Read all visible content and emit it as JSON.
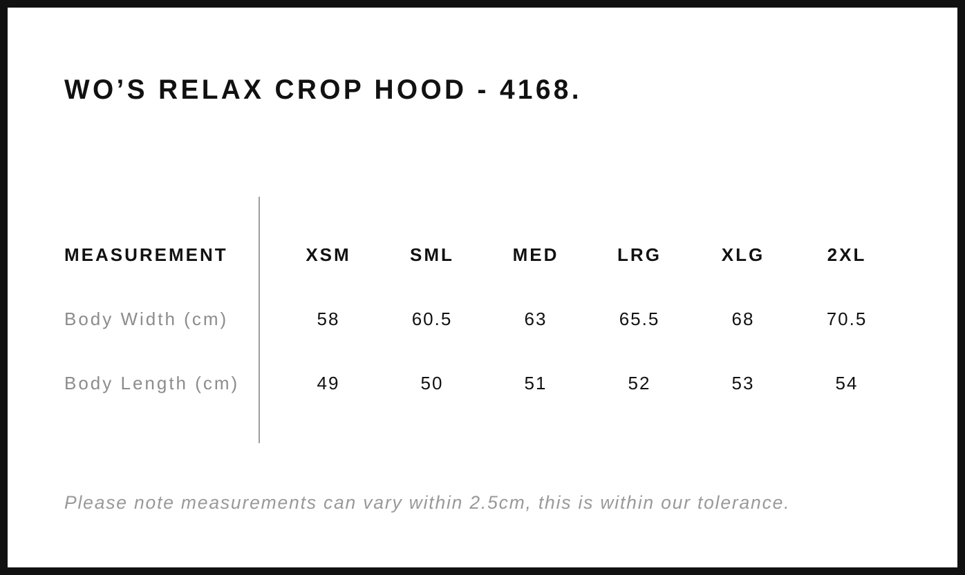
{
  "chart_data": {
    "type": "table",
    "title": "WO’S RELAX CROP HOOD - 4168.",
    "columns": [
      "MEASUREMENT",
      "XSM",
      "SML",
      "MED",
      "LRG",
      "XLG",
      "2XL"
    ],
    "rows": [
      {
        "label": "Body Width (cm)",
        "values": [
          "58",
          "60.5",
          "63",
          "65.5",
          "68",
          "70.5"
        ]
      },
      {
        "label": "Body Length (cm)",
        "values": [
          "49",
          "50",
          "51",
          "52",
          "53",
          "54"
        ]
      }
    ],
    "note": "Please note measurements can vary within 2.5cm, this is within our tolerance.",
    "layout": {
      "legend_position": "none",
      "grid": "off",
      "divider": "vertical line between label column and size columns"
    }
  },
  "colors": {
    "background": "#ffffff",
    "page_border": "#111111",
    "text_primary": "#111111",
    "text_muted": "#8c8c8c",
    "divider_line": "#9e9e9e",
    "note_text": "#999999"
  }
}
